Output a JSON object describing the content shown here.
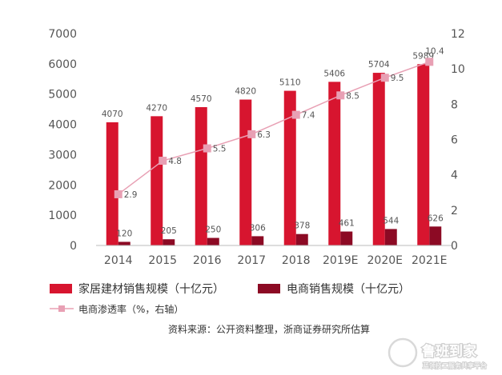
{
  "chart_data": {
    "type": "bar",
    "categories": [
      "2014",
      "2015",
      "2016",
      "2017",
      "2018",
      "2019E",
      "2020E",
      "2021E"
    ],
    "series": [
      {
        "name": "家居建材销售规模（十亿元）",
        "type": "bar",
        "axis": "left",
        "color": "#d7152f",
        "values": [
          4070,
          4270,
          4570,
          4820,
          5110,
          5406,
          5704,
          5989
        ]
      },
      {
        "name": "电商销售规模（十亿元）",
        "type": "bar",
        "axis": "left",
        "color": "#8c0a24",
        "values": [
          120,
          205,
          250,
          306,
          378,
          461,
          544,
          626
        ]
      },
      {
        "name": "电商渗透率（%，右轴）",
        "type": "line",
        "axis": "right",
        "color": "#e8a0b4",
        "values": [
          2.9,
          4.8,
          5.5,
          6.3,
          7.4,
          8.5,
          9.5,
          10.4
        ]
      }
    ],
    "y_left": {
      "min": 0,
      "max": 7000,
      "ticks": [
        0,
        1000,
        2000,
        3000,
        4000,
        5000,
        6000,
        7000
      ]
    },
    "y_right": {
      "min": 0,
      "max": 12,
      "ticks": [
        0,
        2,
        4,
        6,
        8,
        10,
        12
      ]
    },
    "legend_position": "bottom",
    "grid": false,
    "source": "资料来源：公开资料整理，浙商证券研究所估算"
  },
  "watermark": {
    "title": "鲁班到家",
    "subtitle": "蓝领技工服务共享平台"
  }
}
